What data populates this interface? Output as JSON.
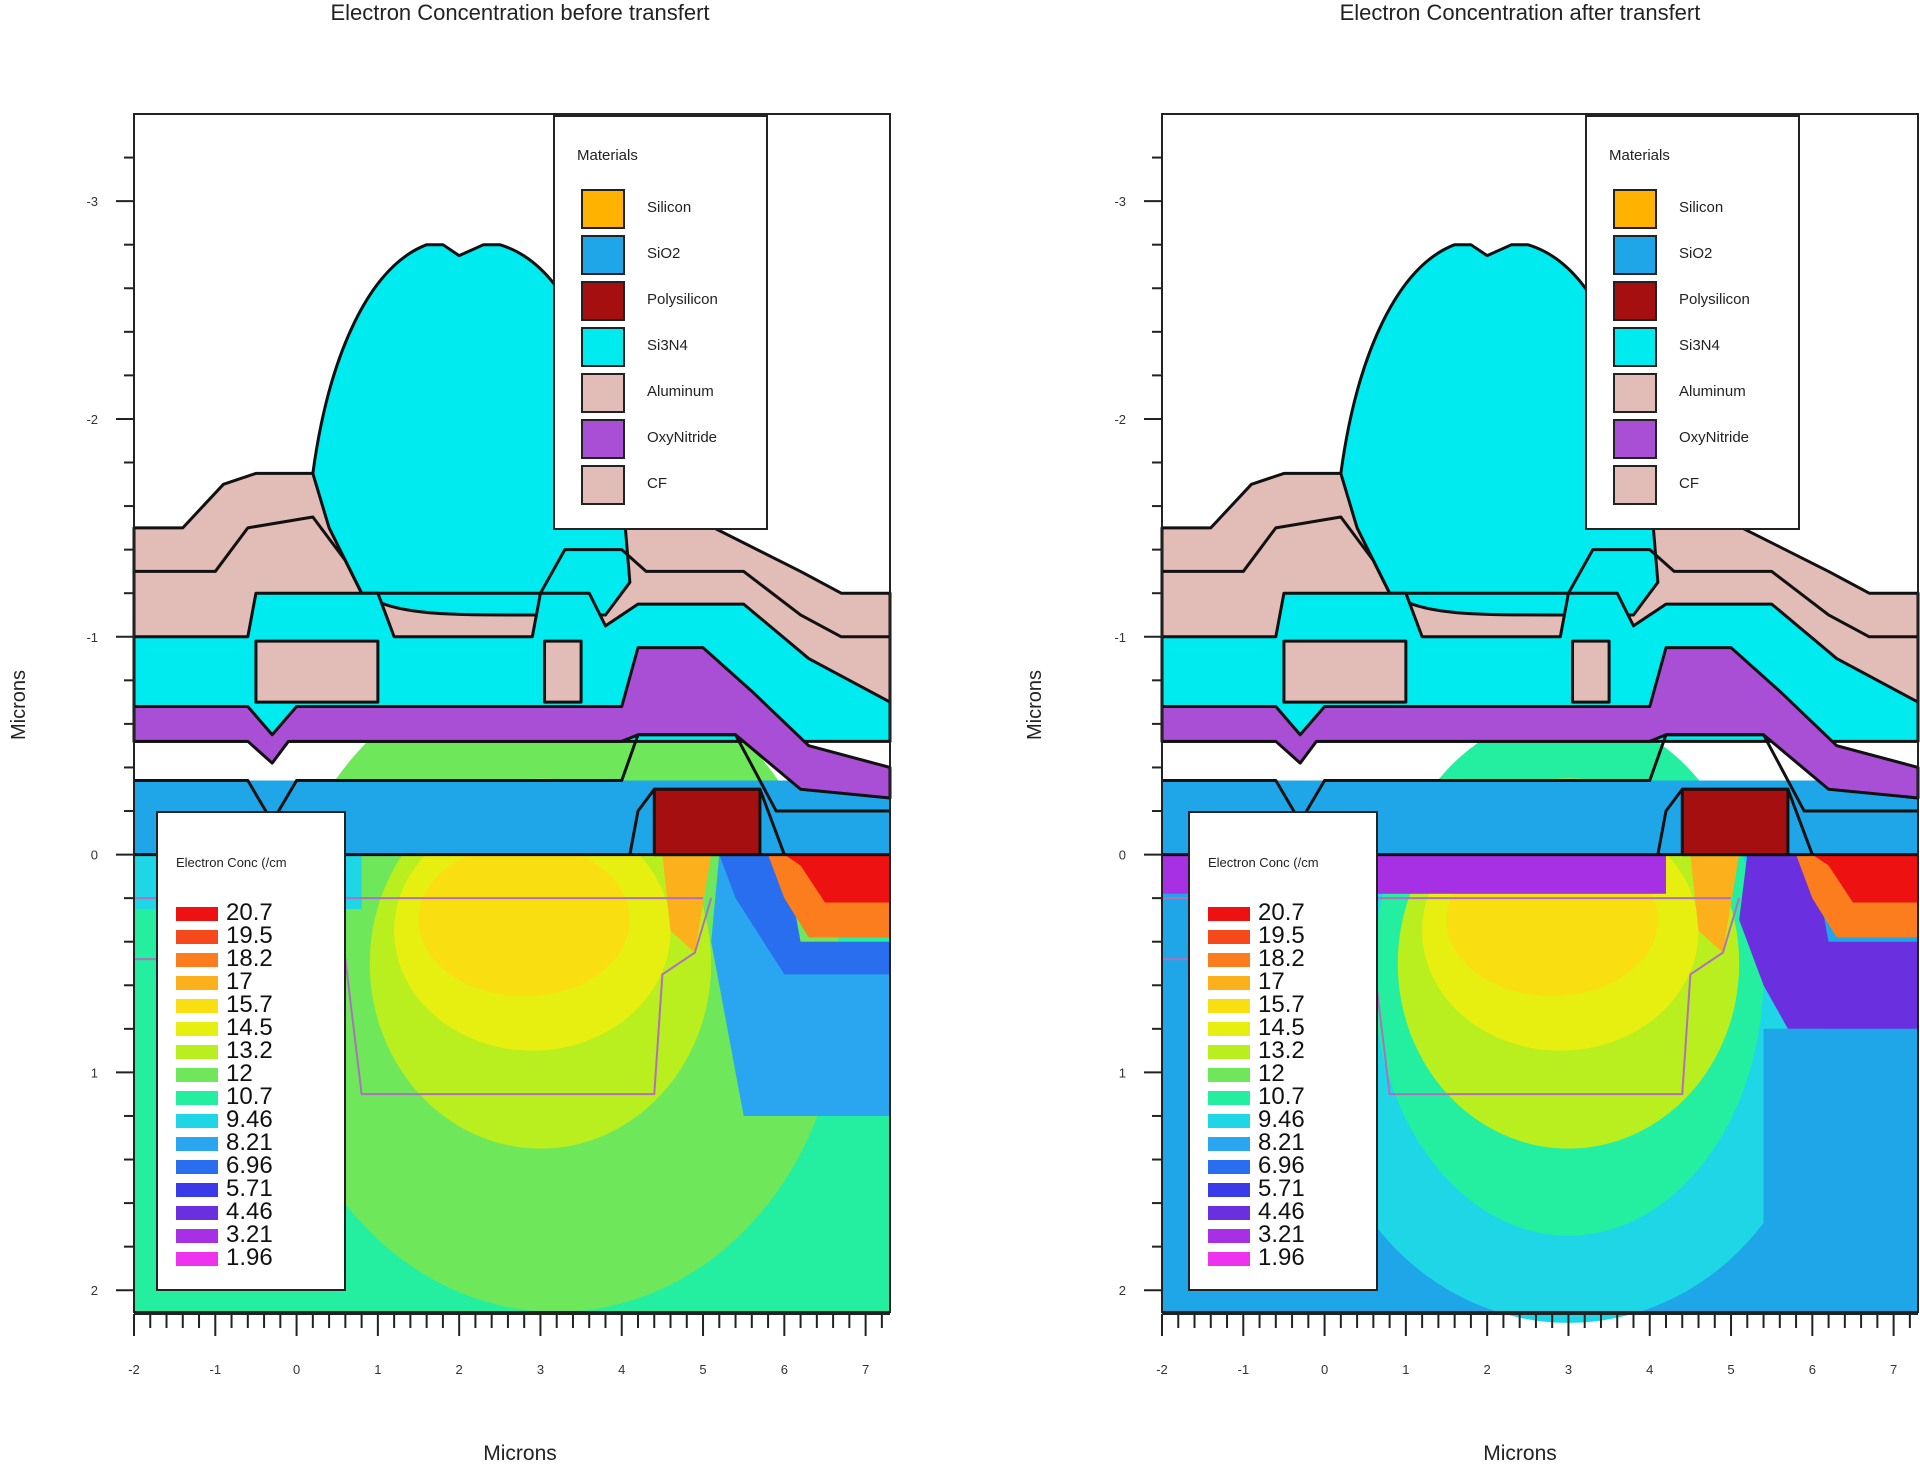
{
  "chart_data": [
    {
      "type": "heatmap",
      "title": "Electron Concentration before transfert",
      "xlabel": "Microns",
      "ylabel": "Microns",
      "xlim": [
        -2,
        7.3
      ],
      "ylim": [
        -3.4,
        2.1
      ],
      "x_ticks": [
        "-2",
        "-1",
        "0",
        "1",
        "2",
        "3",
        "4",
        "5",
        "6",
        "7"
      ],
      "y_ticks": [
        "-3",
        "-2",
        "-1",
        "0",
        "1",
        "2"
      ],
      "materials_legend": {
        "title": "Materials",
        "entries": [
          {
            "name": "Silicon",
            "color": "#ffb300"
          },
          {
            "name": "SiO2",
            "color": "#1ea6e8"
          },
          {
            "name": "Polysilicon",
            "color": "#a50f0f"
          },
          {
            "name": "Si3N4",
            "color": "#00ebf0"
          },
          {
            "name": "Aluminum",
            "color": "#e2bcb6"
          },
          {
            "name": "OxyNitride",
            "color": "#a94fd6"
          },
          {
            "name": "CF",
            "color": "#e2bcb6"
          }
        ]
      },
      "colorbar": {
        "title": "Electron Conc (/cm",
        "levels": [
          "20.7",
          "19.5",
          "18.2",
          "17",
          "15.7",
          "14.5",
          "13.2",
          "12",
          "10.7",
          "9.46",
          "8.21",
          "6.96",
          "5.71",
          "4.46",
          "3.21",
          "1.96"
        ]
      }
    },
    {
      "type": "heatmap",
      "title": "Electron Concentration after transfert",
      "xlabel": "Microns",
      "ylabel": "Microns",
      "xlim": [
        -2,
        7.3
      ],
      "ylim": [
        -3.4,
        2.1
      ],
      "x_ticks": [
        "-2",
        "-1",
        "0",
        "1",
        "2",
        "3",
        "4",
        "5",
        "6",
        "7"
      ],
      "y_ticks": [
        "-3",
        "-2",
        "-1",
        "0",
        "1",
        "2"
      ],
      "materials_legend": {
        "title": "Materials",
        "entries": [
          {
            "name": "Silicon",
            "color": "#ffb300"
          },
          {
            "name": "SiO2",
            "color": "#1ea6e8"
          },
          {
            "name": "Polysilicon",
            "color": "#a50f0f"
          },
          {
            "name": "Si3N4",
            "color": "#00ebf0"
          },
          {
            "name": "Aluminum",
            "color": "#e2bcb6"
          },
          {
            "name": "OxyNitride",
            "color": "#a94fd6"
          },
          {
            "name": "CF",
            "color": "#e2bcb6"
          }
        ]
      },
      "colorbar": {
        "title": "Electron Conc (/cm",
        "levels": [
          "20.7",
          "19.5",
          "18.2",
          "17",
          "15.7",
          "14.5",
          "13.2",
          "12",
          "10.7",
          "9.46",
          "8.21",
          "6.96",
          "5.71",
          "4.46",
          "3.21",
          "1.96"
        ]
      }
    }
  ],
  "colors": {
    "silicon": "#ffb300",
    "sio2": "#1ea6e8",
    "poly": "#a50f0f",
    "si3n4": "#00ebf0",
    "aluminum": "#e2bcb6",
    "oxynitride": "#a94fd6",
    "scale": [
      "#ee1111",
      "#f5491b",
      "#fb7d1e",
      "#fcb11c",
      "#f9de12",
      "#e7ef10",
      "#b9ef1e",
      "#6ee85a",
      "#24eea0",
      "#1fd6e6",
      "#2aa6f0",
      "#2a6ef0",
      "#3a3ae8",
      "#6a30e0",
      "#a830e4",
      "#ee33ee"
    ]
  }
}
